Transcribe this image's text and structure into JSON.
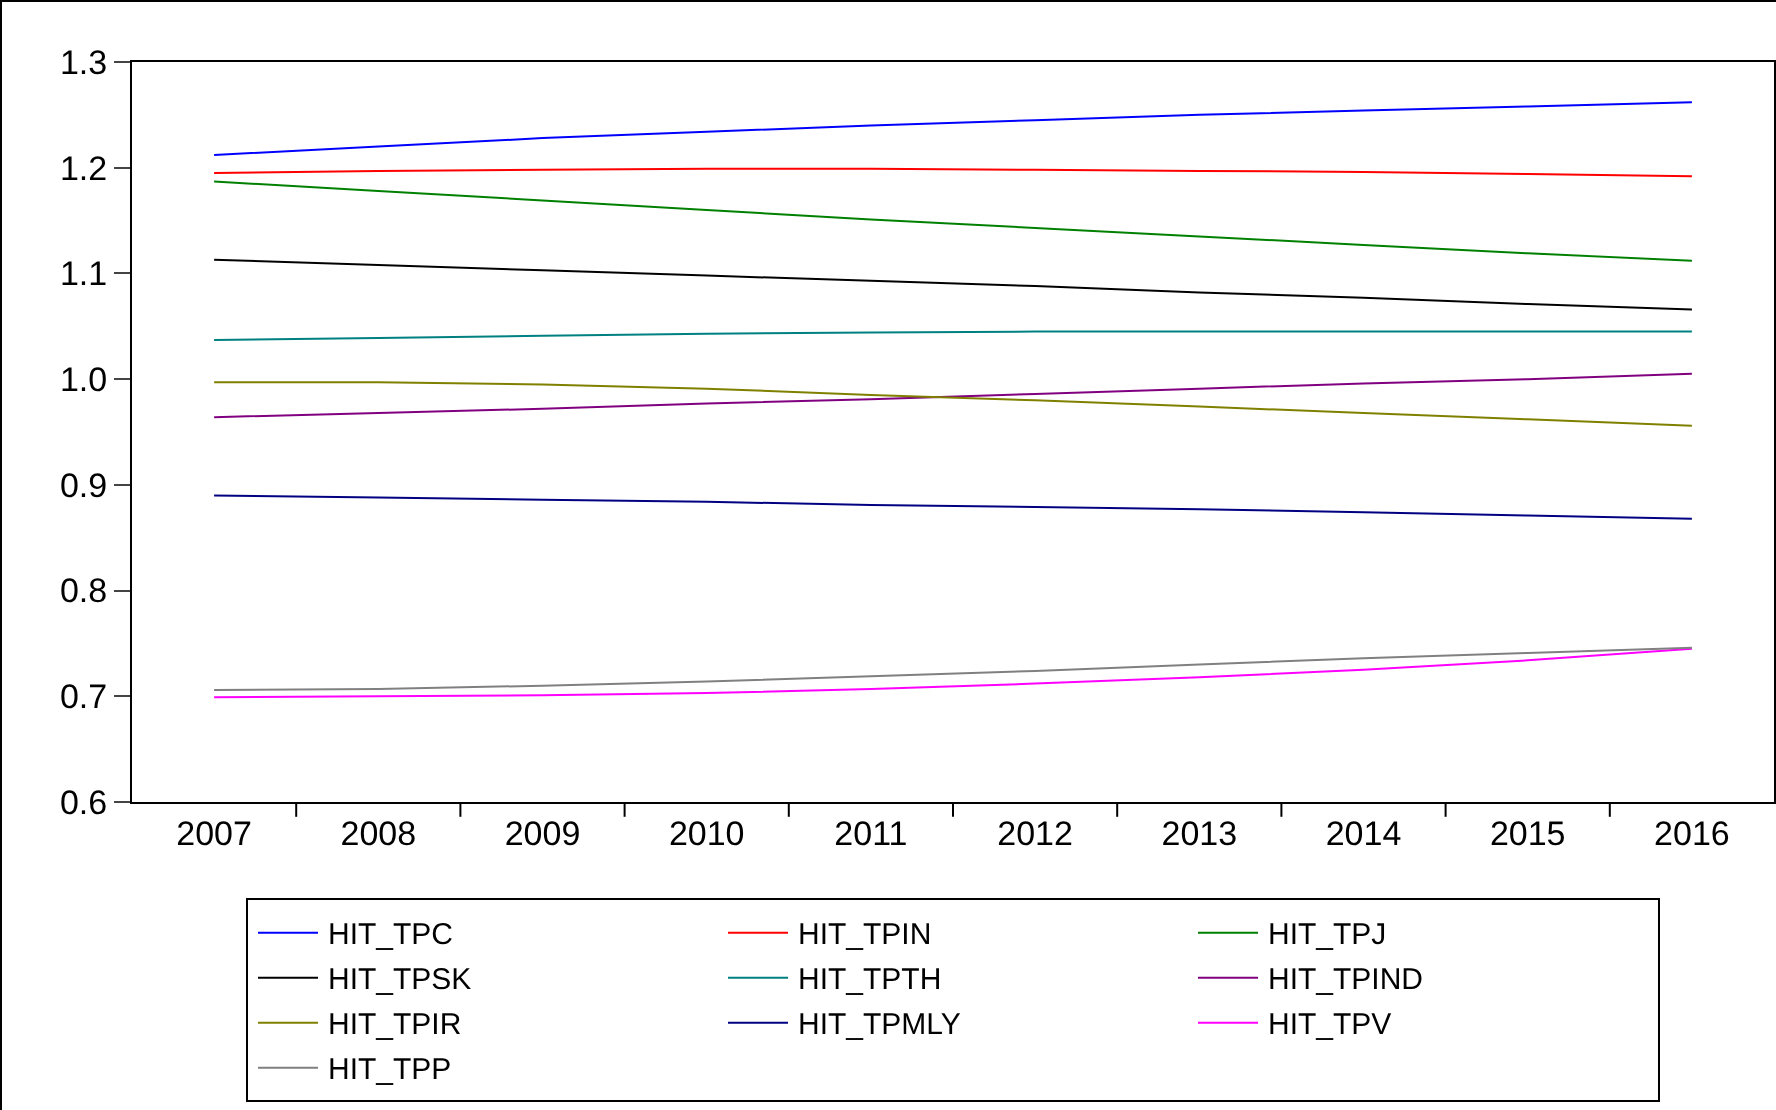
{
  "chart_data": {
    "type": "line",
    "categories": [
      "2007",
      "2008",
      "2009",
      "2010",
      "2011",
      "2012",
      "2013",
      "2014",
      "2015",
      "2016"
    ],
    "ylim": [
      0.6,
      1.3
    ],
    "yticks": [
      0.6,
      0.7,
      0.8,
      0.9,
      {
        "value": 1,
        "label": "1.0"
      },
      1.1,
      1.2,
      1.3
    ],
    "legend": "bottom",
    "line_style": "solid",
    "marker": "none",
    "series": [
      {
        "name": "HIT_TPC",
        "color": "#0000ff",
        "values": [
          1.212,
          1.22,
          1.228,
          1.234,
          1.24,
          1.245,
          1.25,
          1.254,
          1.258,
          1.262
        ]
      },
      {
        "name": "HIT_TPIN",
        "color": "#ff0000",
        "values": [
          1.195,
          1.197,
          1.198,
          1.199,
          1.199,
          1.198,
          1.197,
          1.196,
          1.194,
          1.192
        ]
      },
      {
        "name": "HIT_TPJ",
        "color": "#008000",
        "values": [
          1.187,
          1.178,
          1.169,
          1.16,
          1.151,
          1.143,
          1.135,
          1.127,
          1.119,
          1.112
        ]
      },
      {
        "name": "HIT_TPSK",
        "color": "#000000",
        "values": [
          1.113,
          1.108,
          1.103,
          1.098,
          1.093,
          1.088,
          1.082,
          1.077,
          1.071,
          1.066
        ]
      },
      {
        "name": "HIT_TPTH",
        "color": "#008080",
        "values": [
          1.037,
          1.039,
          1.041,
          1.043,
          1.044,
          1.045,
          1.045,
          1.045,
          1.045,
          1.045
        ]
      },
      {
        "name": "HIT_TPIND",
        "color": "#800080",
        "values": [
          0.964,
          0.968,
          0.972,
          0.977,
          0.981,
          0.986,
          0.991,
          0.996,
          1.0,
          1.005
        ]
      },
      {
        "name": "HIT_TPIR",
        "color": "#808000",
        "values": [
          0.997,
          0.997,
          0.995,
          0.991,
          0.985,
          0.98,
          0.974,
          0.968,
          0.962,
          0.956
        ]
      },
      {
        "name": "HIT_TPMLY",
        "color": "#000080",
        "values": [
          0.89,
          0.888,
          0.886,
          0.884,
          0.881,
          0.879,
          0.877,
          0.874,
          0.871,
          0.868
        ]
      },
      {
        "name": "HIT_TPV",
        "color": "#ff00ff",
        "values": [
          0.699,
          0.7,
          0.701,
          0.703,
          0.707,
          0.712,
          0.718,
          0.725,
          0.734,
          0.745
        ]
      },
      {
        "name": "HIT_TPP",
        "color": "#808080",
        "values": [
          0.706,
          0.707,
          0.71,
          0.714,
          0.719,
          0.724,
          0.73,
          0.736,
          0.741,
          0.746
        ]
      }
    ]
  }
}
